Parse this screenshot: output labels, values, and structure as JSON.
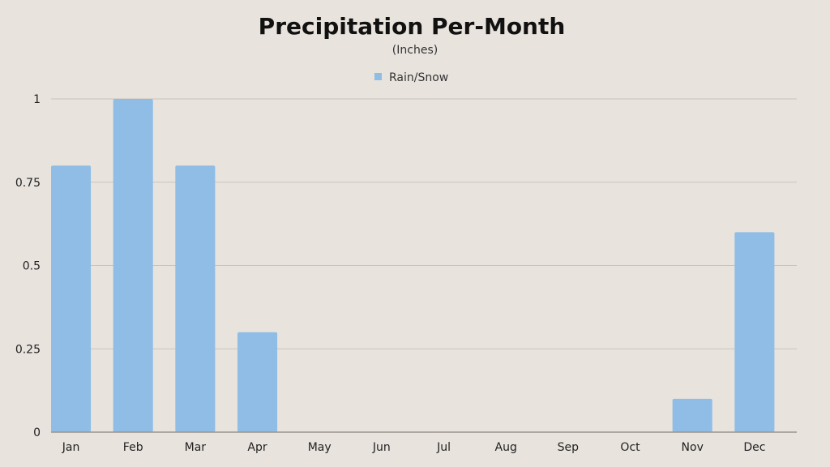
{
  "chart_data": {
    "type": "bar",
    "title": "Precipitation Per-Month",
    "subtitle": "(Inches)",
    "categories": [
      "Jan",
      "Feb",
      "Mar",
      "Apr",
      "May",
      "Jun",
      "Jul",
      "Aug",
      "Sep",
      "Oct",
      "Nov",
      "Dec"
    ],
    "series": [
      {
        "name": "Rain/Snow",
        "values": [
          0.8,
          1.0,
          0.8,
          0.3,
          0,
          0,
          0,
          0,
          0,
          0,
          0.1,
          0.6
        ]
      }
    ],
    "ylim": [
      0,
      1
    ],
    "yticks": [
      0,
      0.25,
      0.5,
      0.75,
      1
    ],
    "ytick_labels": [
      "0",
      "0.25",
      "0.5",
      "0.75",
      "1"
    ],
    "grid": true,
    "legend_position": "top-center",
    "colors": {
      "background": "#e8e3dd",
      "bar": "#8fbde6",
      "grid": "#c9c3bd",
      "axis": "#9a948f"
    }
  }
}
